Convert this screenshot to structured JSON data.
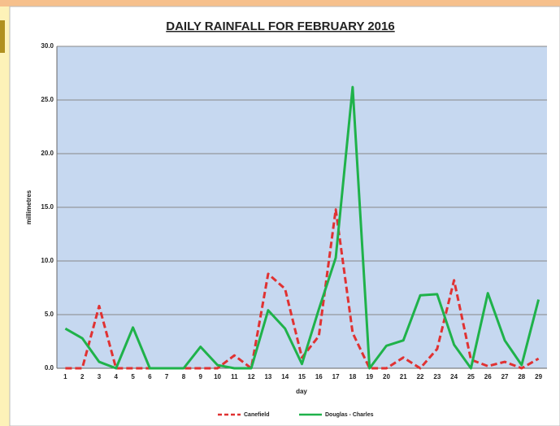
{
  "chart_data": {
    "type": "line",
    "title": "DAILY RAINFALL FOR FEBRUARY 2016",
    "x_label": "day",
    "y_label": "millimetres",
    "categories": [
      "1",
      "2",
      "3",
      "4",
      "5",
      "6",
      "7",
      "8",
      "9",
      "10",
      "11",
      "12",
      "13",
      "14",
      "15",
      "16",
      "17",
      "18",
      "19",
      "20",
      "21",
      "22",
      "23",
      "24",
      "25",
      "26",
      "27",
      "28",
      "29"
    ],
    "series": [
      {
        "name": "Canefield",
        "color": "#e03232",
        "dashed": true,
        "values": [
          0,
          0,
          5.8,
          0,
          0,
          0,
          0,
          0,
          0,
          0,
          1.2,
          0,
          8.8,
          7.4,
          1.0,
          3.0,
          14.8,
          3.3,
          0,
          0,
          1.0,
          0,
          1.8,
          8.2,
          0.8,
          0.2,
          0.6,
          0,
          0.9
        ]
      },
      {
        "name": "Douglas - Charles",
        "color": "#1fb24a",
        "dashed": false,
        "values": [
          3.7,
          2.8,
          0.6,
          0,
          3.8,
          0,
          0,
          0,
          2.0,
          0.3,
          0,
          0,
          5.4,
          3.7,
          0.4,
          5.5,
          10.3,
          26.2,
          0,
          2.1,
          2.6,
          6.8,
          6.9,
          2.2,
          0,
          7.0,
          2.6,
          0.3,
          6.4
        ]
      }
    ],
    "ylim": [
      0,
      30
    ],
    "yticks": [
      {
        "value": 0,
        "label": "0.0"
      },
      {
        "value": 5,
        "label": "5.0"
      },
      {
        "value": 10,
        "label": "10.0"
      },
      {
        "value": 15,
        "label": "15.0"
      },
      {
        "value": 20,
        "label": "20.0"
      },
      {
        "value": 25,
        "label": "25.0"
      },
      {
        "value": 30,
        "label": "30.0"
      }
    ],
    "grid": true,
    "legend": "bottom"
  }
}
